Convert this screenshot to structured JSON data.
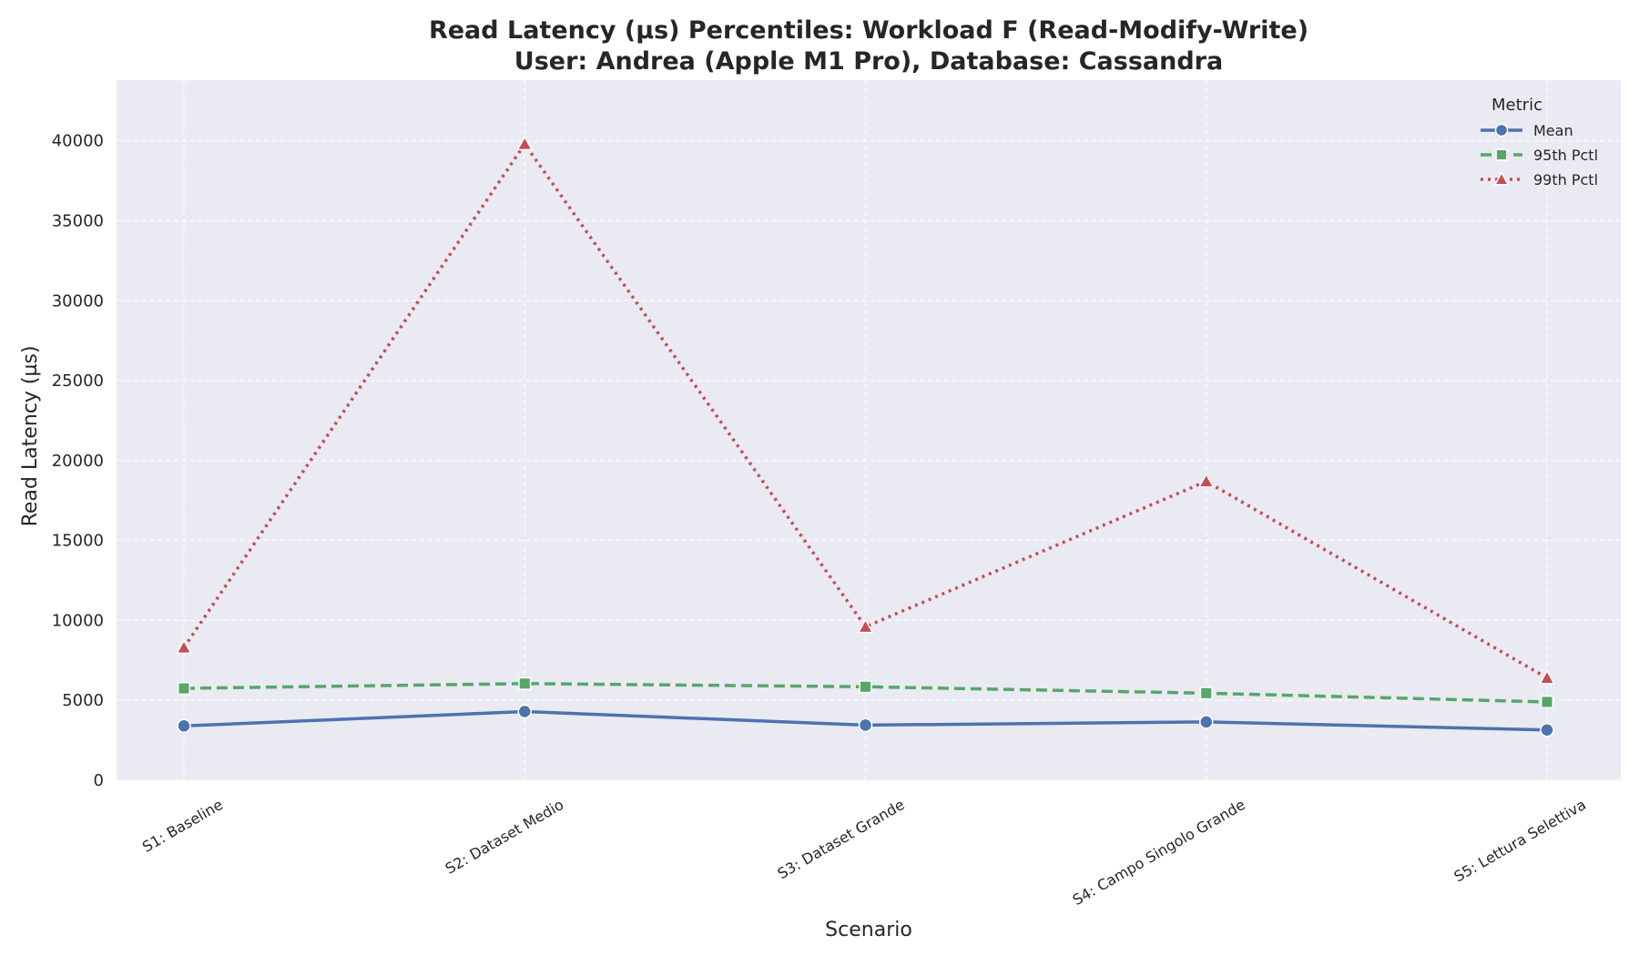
{
  "chart_data": {
    "type": "line",
    "title_line1": "Read Latency (µs) Percentiles: Workload F (Read-Modify-Write)",
    "title_line2": "User: Andrea (Apple M1 Pro), Database: Cassandra",
    "xlabel": "Scenario",
    "ylabel": "Read Latency (µs)",
    "ylim": [
      0,
      43800
    ],
    "yticks": [
      0,
      5000,
      10000,
      15000,
      20000,
      25000,
      30000,
      35000,
      40000
    ],
    "grid": true,
    "legend_placement": "top-right",
    "legend_title": "Metric",
    "categories": [
      "S1: Baseline",
      "S2: Dataset Medio",
      "S3: Dataset Grande",
      "S4: Campo Singolo Grande",
      "S5: Lettura Selettiva"
    ],
    "series": [
      {
        "name": "Mean",
        "values": [
          3400,
          4300,
          3450,
          3650,
          3150
        ],
        "color": "#4c72b0",
        "dash": "solid",
        "marker": "circle"
      },
      {
        "name": "95th Pctl",
        "values": [
          5750,
          6050,
          5850,
          5450,
          4900
        ],
        "color": "#55a868",
        "dash": "dashed",
        "marker": "square"
      },
      {
        "name": "99th Pctl",
        "values": [
          8300,
          39800,
          9600,
          18700,
          6400
        ],
        "color": "#c44e52",
        "dash": "dotted",
        "marker": "triangle"
      }
    ]
  }
}
